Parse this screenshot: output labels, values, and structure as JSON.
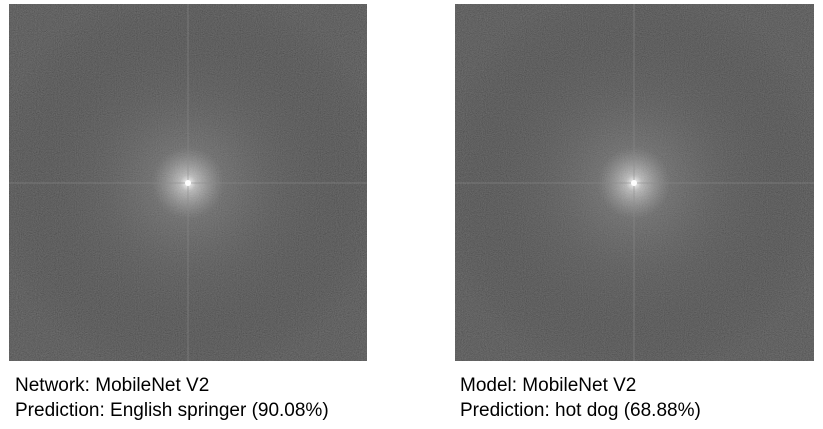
{
  "panels": [
    {
      "network_label": "Network: MobileNet V2",
      "prediction_label": "Prediction: English springer (90.08%)"
    },
    {
      "network_label": "Model: MobileNet V2",
      "prediction_label": "Prediction: hot dog (68.88%)"
    }
  ]
}
